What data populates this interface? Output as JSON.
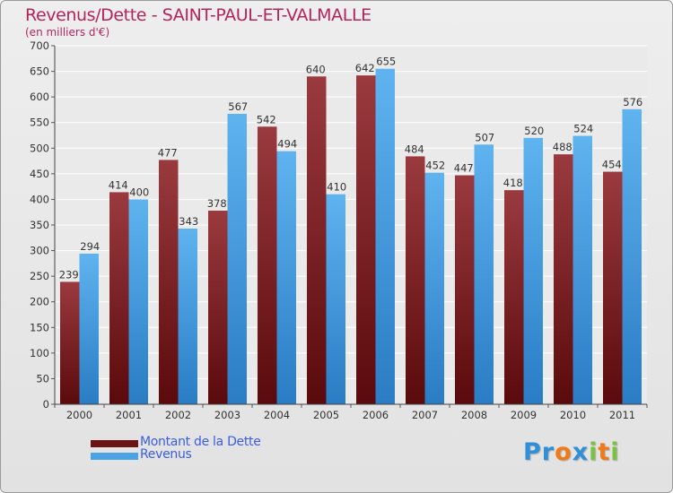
{
  "chart_data": {
    "type": "bar",
    "title": "Revenus/Dette - SAINT-PAUL-ET-VALMALLE",
    "subtitle": "(en milliers d'€)",
    "categories": [
      "2000",
      "2001",
      "2002",
      "2003",
      "2004",
      "2005",
      "2006",
      "2007",
      "2008",
      "2009",
      "2010",
      "2011"
    ],
    "series": [
      {
        "name": "Montant de la Dette",
        "color": "#7a1f22",
        "values": [
          239,
          414,
          477,
          378,
          542,
          640,
          642,
          484,
          447,
          418,
          488,
          454
        ]
      },
      {
        "name": "Revenus",
        "color": "#4ba3e6",
        "values": [
          294,
          400,
          343,
          567,
          494,
          410,
          655,
          452,
          507,
          520,
          524,
          576
        ]
      }
    ],
    "ylim": [
      0,
      700
    ],
    "yticks": [
      0,
      50,
      100,
      150,
      200,
      250,
      300,
      350,
      400,
      450,
      500,
      550,
      600,
      650,
      700
    ],
    "grid": true,
    "legend_position": "bottom-left"
  },
  "logo": {
    "letters": [
      {
        "ch": "P",
        "color": "#2f8fd8"
      },
      {
        "ch": "r",
        "color": "#2f8fd8"
      },
      {
        "ch": "o",
        "color": "#f07a1a"
      },
      {
        "ch": "x",
        "color": "#2f8fd8"
      },
      {
        "ch": "i",
        "color": "#7cc242"
      },
      {
        "ch": "t",
        "color": "#f07a1a"
      },
      {
        "ch": "i",
        "color": "#7cc242"
      }
    ]
  }
}
